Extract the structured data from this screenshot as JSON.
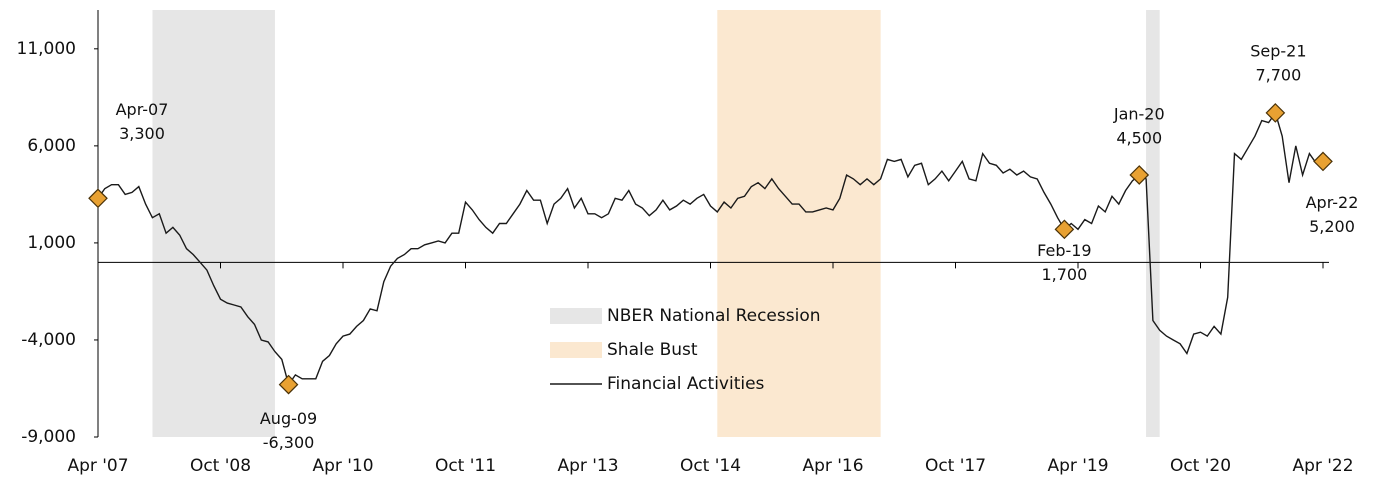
{
  "chart_data": {
    "type": "line",
    "x": [
      "2007-04",
      "2007-05",
      "2007-06",
      "2007-07",
      "2007-08",
      "2007-09",
      "2007-10",
      "2007-11",
      "2007-12",
      "2008-01",
      "2008-02",
      "2008-03",
      "2008-04",
      "2008-05",
      "2008-06",
      "2008-07",
      "2008-08",
      "2008-09",
      "2008-10",
      "2008-11",
      "2008-12",
      "2009-01",
      "2009-02",
      "2009-03",
      "2009-04",
      "2009-05",
      "2009-06",
      "2009-07",
      "2009-08",
      "2009-09",
      "2009-10",
      "2009-11",
      "2009-12",
      "2010-01",
      "2010-02",
      "2010-03",
      "2010-04",
      "2010-05",
      "2010-06",
      "2010-07",
      "2010-08",
      "2010-09",
      "2010-10",
      "2010-11",
      "2010-12",
      "2011-01",
      "2011-02",
      "2011-03",
      "2011-04",
      "2011-05",
      "2011-06",
      "2011-07",
      "2011-08",
      "2011-09",
      "2011-10",
      "2011-11",
      "2011-12",
      "2012-01",
      "2012-02",
      "2012-03",
      "2012-04",
      "2012-05",
      "2012-06",
      "2012-07",
      "2012-08",
      "2012-09",
      "2012-10",
      "2012-11",
      "2012-12",
      "2013-01",
      "2013-02",
      "2013-03",
      "2013-04",
      "2013-05",
      "2013-06",
      "2013-07",
      "2013-08",
      "2013-09",
      "2013-10",
      "2013-11",
      "2013-12",
      "2014-01",
      "2014-02",
      "2014-03",
      "2014-04",
      "2014-05",
      "2014-06",
      "2014-07",
      "2014-08",
      "2014-09",
      "2014-10",
      "2014-11",
      "2014-12",
      "2015-01",
      "2015-02",
      "2015-03",
      "2015-04",
      "2015-05",
      "2015-06",
      "2015-07",
      "2015-08",
      "2015-09",
      "2015-10",
      "2015-11",
      "2015-12",
      "2016-01",
      "2016-02",
      "2016-03",
      "2016-04",
      "2016-05",
      "2016-06",
      "2016-07",
      "2016-08",
      "2016-09",
      "2016-10",
      "2016-11",
      "2016-12",
      "2017-01",
      "2017-02",
      "2017-03",
      "2017-04",
      "2017-05",
      "2017-06",
      "2017-07",
      "2017-08",
      "2017-09",
      "2017-10",
      "2017-11",
      "2017-12",
      "2018-01",
      "2018-02",
      "2018-03",
      "2018-04",
      "2018-05",
      "2018-06",
      "2018-07",
      "2018-08",
      "2018-09",
      "2018-10",
      "2018-11",
      "2018-12",
      "2019-01",
      "2019-02",
      "2019-03",
      "2019-04",
      "2019-05",
      "2019-06",
      "2019-07",
      "2019-08",
      "2019-09",
      "2019-10",
      "2019-11",
      "2019-12",
      "2020-01",
      "2020-02",
      "2020-03",
      "2020-04",
      "2020-05",
      "2020-06",
      "2020-07",
      "2020-08",
      "2020-09",
      "2020-10",
      "2020-11",
      "2020-12",
      "2021-01",
      "2021-02",
      "2021-03",
      "2021-04",
      "2021-05",
      "2021-06",
      "2021-07",
      "2021-08",
      "2021-09",
      "2021-10",
      "2021-11",
      "2021-12",
      "2022-01",
      "2022-02",
      "2022-03",
      "2022-04"
    ],
    "series": [
      {
        "name": "Financial Activities",
        "color": "#1a1a1a",
        "values": [
          3300,
          3800,
          4000,
          4000,
          3500,
          3600,
          3900,
          3000,
          2300,
          2500,
          1500,
          1800,
          1400,
          700,
          400,
          0,
          -400,
          -1200,
          -1900,
          -2100,
          -2200,
          -2300,
          -2800,
          -3200,
          -4000,
          -4100,
          -4600,
          -5000,
          -6300,
          -5800,
          -6000,
          -6000,
          -6000,
          -5100,
          -4800,
          -4200,
          -3800,
          -3700,
          -3300,
          -3000,
          -2400,
          -2500,
          -1000,
          -200,
          200,
          400,
          700,
          700,
          900,
          1000,
          1100,
          1000,
          1500,
          1500,
          3100,
          2700,
          2200,
          1800,
          1500,
          2000,
          2000,
          2500,
          3000,
          3700,
          3200,
          3200,
          2000,
          3000,
          3300,
          3800,
          2800,
          3300,
          2500,
          2500,
          2300,
          2500,
          3300,
          3200,
          3700,
          3000,
          2800,
          2400,
          2700,
          3200,
          2700,
          2900,
          3200,
          3000,
          3300,
          3500,
          2900,
          2600,
          3100,
          2800,
          3300,
          3400,
          3900,
          4100,
          3800,
          4300,
          3800,
          3400,
          3000,
          3000,
          2600,
          2600,
          2700,
          2800,
          2700,
          3300,
          4500,
          4300,
          4000,
          4300,
          4000,
          4300,
          5300,
          5200,
          5300,
          4400,
          5000,
          5100,
          4000,
          4300,
          4700,
          4200,
          4700,
          5200,
          4300,
          4200,
          5600,
          5100,
          5000,
          4600,
          4800,
          4500,
          4700,
          4400,
          4300,
          3600,
          3000,
          2300,
          1700,
          2000,
          1700,
          2200,
          2000,
          2900,
          2600,
          3400,
          3000,
          3700,
          4200,
          4500,
          4300,
          -3000,
          -3500,
          -3800,
          -4000,
          -4200,
          -4700,
          -3700,
          -3600,
          -3800,
          -3300,
          -3700,
          -1800,
          5600,
          5300,
          5900,
          6500,
          7300,
          7200,
          7700,
          6500,
          4100,
          6000,
          4500,
          5600,
          5100,
          5200
        ]
      }
    ],
    "xlim": [
      "2007-04",
      "2022-04"
    ],
    "xticks": [
      {
        "value": "2007-04",
        "label": "Apr '07"
      },
      {
        "value": "2008-10",
        "label": "Oct '08"
      },
      {
        "value": "2010-04",
        "label": "Apr '10"
      },
      {
        "value": "2011-10",
        "label": "Oct '11"
      },
      {
        "value": "2013-04",
        "label": "Apr '13"
      },
      {
        "value": "2014-10",
        "label": "Oct '14"
      },
      {
        "value": "2016-04",
        "label": "Apr '16"
      },
      {
        "value": "2017-10",
        "label": "Oct '17"
      },
      {
        "value": "2019-04",
        "label": "Apr '19"
      },
      {
        "value": "2020-10",
        "label": "Oct '20"
      },
      {
        "value": "2022-04",
        "label": "Apr '22"
      }
    ],
    "ylim": [
      -9000,
      13000
    ],
    "yticks": [
      {
        "value": 11000,
        "label": "11,000"
      },
      {
        "value": 6000,
        "label": "6,000"
      },
      {
        "value": 1000,
        "label": "1,000"
      },
      {
        "value": -4000,
        "label": "-4,000"
      },
      {
        "value": -9000,
        "label": "-9,000"
      }
    ],
    "shaded_regions": [
      {
        "name": "NBER National Recession",
        "color": "#e6e6e6",
        "spans": [
          [
            "2007-12",
            "2009-06"
          ],
          [
            "2020-02",
            "2020-04"
          ]
        ]
      },
      {
        "name": "Shale Bust",
        "color": "#fbe8d0",
        "spans": [
          [
            "2014-11",
            "2016-11"
          ]
        ]
      }
    ],
    "annotations": [
      {
        "x": "2007-04",
        "y": 3300,
        "label": "Apr-07",
        "value_label": "3,300"
      },
      {
        "x": "2009-08",
        "y": -6300,
        "label": "Aug-09",
        "value_label": "-6,300"
      },
      {
        "x": "2019-02",
        "y": 1700,
        "label": "Feb-19",
        "value_label": "1,700"
      },
      {
        "x": "2020-01",
        "y": 4500,
        "label": "Jan-20",
        "value_label": "4,500"
      },
      {
        "x": "2021-09",
        "y": 7700,
        "label": "Sep-21",
        "value_label": "7,700"
      },
      {
        "x": "2022-04",
        "y": 5200,
        "label": "Apr-22",
        "value_label": "5,200"
      }
    ],
    "marker_color": "#e8a132"
  }
}
